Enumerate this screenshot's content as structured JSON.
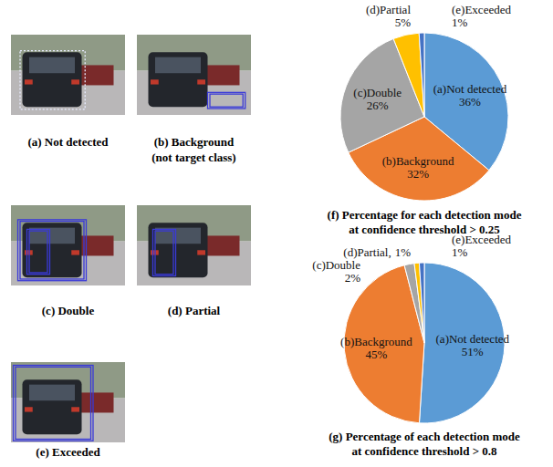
{
  "panels": [
    {
      "caption": "(a) Not detected"
    },
    {
      "caption": "(b) Background (not target class)"
    },
    {
      "caption": "(c) Double"
    },
    {
      "caption": "(d) Partial"
    },
    {
      "caption": "(e) Exceeded"
    }
  ],
  "chart_data": [
    {
      "type": "pie",
      "title": "(f) Percentage for each detection mode at confidence threshold > 0.25",
      "categories": [
        "(a)Not detected",
        "(b)Background",
        "(c)Double",
        "(d)Partial",
        "(e)Exceeded"
      ],
      "values": [
        36,
        32,
        26,
        5,
        1
      ],
      "value_labels": [
        "36%",
        "32%",
        "26%",
        "5%",
        "1%"
      ],
      "colors": [
        "#5b9bd5",
        "#ed7d31",
        "#a5a5a5",
        "#ffc000",
        "#4472c4"
      ],
      "data_labels": true
    },
    {
      "type": "pie",
      "title": "(g) Percentage of each detection mode at confidence threshold > 0.8",
      "categories": [
        "(a)Not detected",
        "(b)Background",
        "(c)Double",
        "(d)Partial,",
        "(e)Exceeded"
      ],
      "values": [
        51,
        45,
        2,
        1,
        1
      ],
      "value_labels": [
        "51%",
        "45%",
        "2%",
        "1%",
        "1%"
      ],
      "colors": [
        "#5b9bd5",
        "#ed7d31",
        "#a5a5a5",
        "#ffc000",
        "#4472c4"
      ],
      "data_labels": true
    }
  ]
}
